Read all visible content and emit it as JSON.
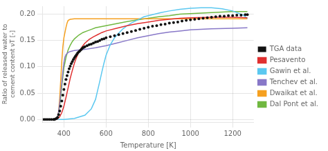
{
  "chart_data": {
    "type": "line",
    "xlabel": "Temperature [K]",
    "ylabel": "Ratio of released water to\ncement content νT [-]",
    "xlim": [
      300,
      1300
    ],
    "ylim": [
      -0.005,
      0.215
    ],
    "xticks": [
      400,
      600,
      800,
      1000,
      1200
    ],
    "yticks": [
      {
        "value": 0.0,
        "label": "0.00"
      },
      {
        "value": 0.05,
        "label": "0.05"
      },
      {
        "value": 0.1,
        "label": "0.10"
      },
      {
        "value": 0.15,
        "label": "0.15"
      },
      {
        "value": 0.2,
        "label": "0.20"
      }
    ],
    "grid": true,
    "legend": "right",
    "series": [
      {
        "name": "Pesavento",
        "type": "line",
        "color": "#e03030",
        "x": [
          300,
          365,
          370,
          380,
          390,
          400,
          410,
          420,
          430,
          440,
          450,
          460,
          470,
          480,
          490,
          500,
          520,
          540,
          560,
          580,
          600,
          650,
          700,
          750,
          800,
          850,
          900,
          950,
          1000,
          1100,
          1200,
          1270
        ],
        "values": [
          0.0,
          0.0,
          0.001,
          0.005,
          0.013,
          0.025,
          0.042,
          0.06,
          0.078,
          0.093,
          0.107,
          0.118,
          0.127,
          0.134,
          0.14,
          0.145,
          0.152,
          0.157,
          0.161,
          0.165,
          0.168,
          0.173,
          0.178,
          0.182,
          0.185,
          0.188,
          0.19,
          0.192,
          0.193,
          0.194,
          0.194,
          0.193
        ]
      },
      {
        "name": "Gawin et al.",
        "type": "line",
        "color": "#5bc8f0",
        "x": [
          300,
          370,
          400,
          450,
          500,
          530,
          550,
          560,
          570,
          580,
          590,
          600,
          620,
          640,
          660,
          680,
          700,
          720,
          740,
          760,
          780,
          800,
          830,
          860,
          900,
          950,
          1000,
          1050,
          1100,
          1150,
          1200,
          1250,
          1270
        ],
        "values": [
          0.0,
          0.0,
          0.0,
          0.002,
          0.008,
          0.02,
          0.038,
          0.055,
          0.072,
          0.09,
          0.107,
          0.122,
          0.142,
          0.155,
          0.164,
          0.172,
          0.178,
          0.183,
          0.187,
          0.191,
          0.195,
          0.197,
          0.2,
          0.203,
          0.206,
          0.209,
          0.211,
          0.212,
          0.212,
          0.21,
          0.206,
          0.198,
          0.192
        ]
      },
      {
        "name": "Tenchev et al.",
        "type": "line",
        "color": "#8878c8",
        "x": [
          300,
          360,
          365,
          370,
          375,
          380,
          385,
          390,
          395,
          400,
          405,
          410,
          420,
          430,
          440,
          450,
          500,
          550,
          600,
          650,
          700,
          750,
          800,
          850,
          900,
          950,
          1000,
          1100,
          1200,
          1270
        ],
        "values": [
          0.0,
          0.0,
          0.001,
          0.005,
          0.015,
          0.03,
          0.05,
          0.07,
          0.09,
          0.108,
          0.118,
          0.123,
          0.127,
          0.129,
          0.13,
          0.131,
          0.133,
          0.136,
          0.14,
          0.145,
          0.15,
          0.155,
          0.159,
          0.163,
          0.166,
          0.168,
          0.17,
          0.172,
          0.173,
          0.174
        ]
      },
      {
        "name": "Dwaikat et al.",
        "type": "line",
        "color": "#f5a020",
        "x": [
          300,
          360,
          365,
          370,
          375,
          380,
          385,
          390,
          395,
          400,
          405,
          410,
          415,
          420,
          430,
          450,
          500,
          600,
          700,
          800,
          900,
          1000,
          1100,
          1200,
          1270
        ],
        "values": [
          0.0,
          0.0,
          0.001,
          0.005,
          0.015,
          0.04,
          0.075,
          0.11,
          0.138,
          0.155,
          0.165,
          0.175,
          0.183,
          0.188,
          0.19,
          0.191,
          0.191,
          0.191,
          0.191,
          0.191,
          0.191,
          0.191,
          0.191,
          0.191,
          0.191
        ]
      },
      {
        "name": "Dal Pont et al.",
        "type": "line",
        "color": "#70b840",
        "x": [
          300,
          360,
          365,
          370,
          375,
          380,
          385,
          390,
          395,
          400,
          410,
          420,
          430,
          440,
          450,
          470,
          490,
          510,
          530,
          550,
          600,
          650,
          700,
          750,
          800,
          850,
          900,
          950,
          1000,
          1100,
          1200,
          1270
        ],
        "values": [
          0.0,
          0.0,
          0.001,
          0.004,
          0.012,
          0.025,
          0.043,
          0.063,
          0.082,
          0.098,
          0.118,
          0.132,
          0.141,
          0.148,
          0.153,
          0.16,
          0.165,
          0.168,
          0.171,
          0.174,
          0.178,
          0.182,
          0.186,
          0.189,
          0.192,
          0.195,
          0.197,
          0.2,
          0.201,
          0.203,
          0.205,
          0.205
        ]
      },
      {
        "name": "TGA data",
        "type": "scatter",
        "color": "#111111",
        "marker": "circle",
        "x": [
          300,
          310,
          320,
          330,
          340,
          350,
          355,
          360,
          365,
          370,
          375,
          380,
          385,
          390,
          395,
          400,
          405,
          410,
          415,
          420,
          425,
          430,
          435,
          440,
          445,
          450,
          455,
          460,
          465,
          470,
          475,
          480,
          485,
          490,
          495,
          500,
          510,
          520,
          530,
          540,
          550,
          560,
          570,
          580,
          590,
          600,
          620,
          640,
          660,
          680,
          700,
          720,
          740,
          760,
          780,
          800,
          820,
          840,
          860,
          880,
          900,
          920,
          940,
          960,
          980,
          1000,
          1020,
          1040,
          1060,
          1080,
          1100,
          1120,
          1140,
          1160,
          1180,
          1200,
          1220,
          1240,
          1260,
          1270
        ],
        "values": [
          0.0,
          0.0,
          0.0,
          0.0,
          0.0,
          0.0,
          0.0,
          0.001,
          0.002,
          0.004,
          0.009,
          0.016,
          0.025,
          0.035,
          0.046,
          0.057,
          0.067,
          0.076,
          0.083,
          0.09,
          0.096,
          0.101,
          0.106,
          0.11,
          0.114,
          0.117,
          0.12,
          0.123,
          0.126,
          0.128,
          0.13,
          0.132,
          0.134,
          0.136,
          0.137,
          0.138,
          0.14,
          0.142,
          0.143,
          0.145,
          0.147,
          0.148,
          0.15,
          0.152,
          0.153,
          0.155,
          0.157,
          0.159,
          0.161,
          0.163,
          0.165,
          0.167,
          0.169,
          0.171,
          0.173,
          0.175,
          0.177,
          0.178,
          0.18,
          0.181,
          0.183,
          0.184,
          0.185,
          0.187,
          0.188,
          0.189,
          0.19,
          0.191,
          0.192,
          0.193,
          0.194,
          0.195,
          0.196,
          0.196,
          0.197,
          0.197,
          0.198,
          0.198,
          0.199,
          0.199
        ]
      }
    ]
  }
}
